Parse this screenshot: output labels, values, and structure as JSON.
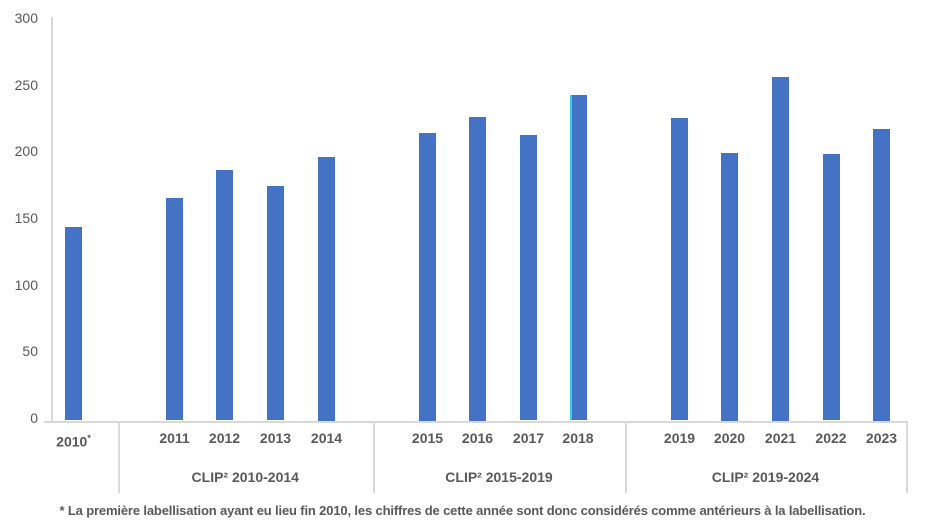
{
  "chart_data": {
    "type": "bar",
    "title": "",
    "ylabel": "",
    "xlabel": "",
    "ylim": [
      0,
      300
    ],
    "yticks": [
      0,
      50,
      100,
      150,
      200,
      250,
      300
    ],
    "bar_color": "#4472C4",
    "axis_color": "#d9d9d9",
    "text_color": "#595959",
    "grid": false,
    "legend": false,
    "highlight": {
      "year": "2018",
      "edge_color": "#2ED3F0"
    },
    "bars": [
      {
        "year": "2010",
        "sup": "*",
        "value": 145,
        "group": 0
      },
      {
        "year": "2011",
        "value": 167,
        "group": 1
      },
      {
        "year": "2012",
        "value": 188,
        "group": 1
      },
      {
        "year": "2013",
        "value": 176,
        "group": 1
      },
      {
        "year": "2014",
        "value": 198,
        "group": 1
      },
      {
        "year": "2015",
        "value": 216,
        "group": 2
      },
      {
        "year": "2016",
        "value": 228,
        "group": 2
      },
      {
        "year": "2017",
        "value": 214,
        "group": 2
      },
      {
        "year": "2018",
        "value": 244,
        "group": 2
      },
      {
        "year": "2019",
        "value": 227,
        "group": 3
      },
      {
        "year": "2020",
        "value": 201,
        "group": 3
      },
      {
        "year": "2021",
        "value": 258,
        "group": 3
      },
      {
        "year": "2022",
        "value": 200,
        "group": 3
      },
      {
        "year": "2023",
        "value": 219,
        "group": 3
      }
    ],
    "group_labels": [
      "CLIP² 2010-2014",
      "CLIP² 2015-2019",
      "CLIP² 2019-2024"
    ]
  },
  "footnote": "* La première labellisation ayant eu lieu fin 2010, les chiffres de cette année sont donc considérés comme antérieurs à la labellisation."
}
